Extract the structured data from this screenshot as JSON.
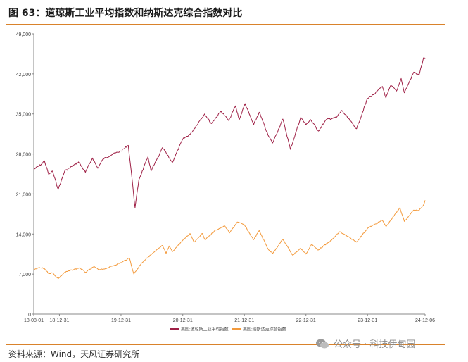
{
  "title": "图 63：道琼斯工业平均指数和纳斯达克综合指数对比",
  "source": "资料来源：Wind，天风证券研究所",
  "watermark": "公众号 · 科技伊甸园",
  "colors": {
    "dow": "#9e1f45",
    "nasdaq": "#f39a3c",
    "accent": "#d9822b"
  },
  "chart_data": {
    "type": "line",
    "title": "",
    "xlabel": "",
    "ylabel": "",
    "ylim": [
      0,
      49000
    ],
    "yticks": [
      0,
      7000,
      14000,
      21000,
      28000,
      35000,
      42000,
      49000
    ],
    "ytick_labels": [
      "0",
      "7,000",
      "14,000",
      "21,000",
      "28,000",
      "35,000",
      "42,000",
      "49,000"
    ],
    "xticks": [
      "18-08-01",
      "18-12-31",
      "19-12-31",
      "20-12-31",
      "21-12-31",
      "22-12-31",
      "23-12-31",
      "24-12-06"
    ],
    "xtick_dates": [
      "2018-08-01",
      "2018-12-31",
      "2019-12-31",
      "2020-12-31",
      "2021-12-31",
      "2022-12-31",
      "2023-12-31",
      "2024-12-06"
    ],
    "legend_position": "bottom",
    "grid": false,
    "series": [
      {
        "name": "美国:道琼斯工业平均指数",
        "color": "#9e1f45",
        "points": [
          [
            "2018-08-01",
            25300
          ],
          [
            "2018-09-15",
            26200
          ],
          [
            "2018-10-03",
            26800
          ],
          [
            "2018-10-29",
            24400
          ],
          [
            "2018-11-20",
            25000
          ],
          [
            "2018-12-24",
            21800
          ],
          [
            "2019-01-31",
            25000
          ],
          [
            "2019-03-15",
            25800
          ],
          [
            "2019-04-23",
            26600
          ],
          [
            "2019-06-03",
            24800
          ],
          [
            "2019-07-15",
            27300
          ],
          [
            "2019-08-15",
            25500
          ],
          [
            "2019-09-15",
            27100
          ],
          [
            "2019-11-15",
            28000
          ],
          [
            "2019-12-31",
            28500
          ],
          [
            "2020-02-12",
            29500
          ],
          [
            "2020-02-28",
            25400
          ],
          [
            "2020-03-23",
            18600
          ],
          [
            "2020-04-15",
            23500
          ],
          [
            "2020-06-08",
            27500
          ],
          [
            "2020-06-26",
            25000
          ],
          [
            "2020-08-15",
            27900
          ],
          [
            "2020-09-02",
            29100
          ],
          [
            "2020-10-30",
            26500
          ],
          [
            "2020-12-31",
            30600
          ],
          [
            "2021-02-15",
            31500
          ],
          [
            "2021-04-15",
            34000
          ],
          [
            "2021-05-10",
            35000
          ],
          [
            "2021-06-18",
            33300
          ],
          [
            "2021-08-15",
            35500
          ],
          [
            "2021-09-30",
            33800
          ],
          [
            "2021-11-08",
            36400
          ],
          [
            "2021-12-01",
            34000
          ],
          [
            "2022-01-04",
            36800
          ],
          [
            "2022-02-24",
            33100
          ],
          [
            "2022-03-29",
            35300
          ],
          [
            "2022-05-20",
            31300
          ],
          [
            "2022-06-16",
            29900
          ],
          [
            "2022-08-16",
            34100
          ],
          [
            "2022-09-30",
            28800
          ],
          [
            "2022-11-30",
            34400
          ],
          [
            "2022-12-31",
            33100
          ],
          [
            "2023-01-27",
            34000
          ],
          [
            "2023-03-15",
            32000
          ],
          [
            "2023-04-30",
            34000
          ],
          [
            "2023-06-30",
            34400
          ],
          [
            "2023-07-31",
            35600
          ],
          [
            "2023-10-27",
            32400
          ],
          [
            "2023-12-31",
            37700
          ],
          [
            "2024-02-15",
            38600
          ],
          [
            "2024-03-28",
            39800
          ],
          [
            "2024-04-18",
            37800
          ],
          [
            "2024-05-17",
            40000
          ],
          [
            "2024-06-20",
            39000
          ],
          [
            "2024-07-17",
            41200
          ],
          [
            "2024-08-05",
            38700
          ],
          [
            "2024-09-30",
            42300
          ],
          [
            "2024-10-31",
            41800
          ],
          [
            "2024-11-29",
            44900
          ],
          [
            "2024-12-06",
            44600
          ]
        ]
      },
      {
        "name": "美国:纳斯达克综合指数",
        "color": "#f39a3c",
        "points": [
          [
            "2018-08-01",
            7700
          ],
          [
            "2018-08-29",
            8100
          ],
          [
            "2018-10-01",
            8000
          ],
          [
            "2018-10-29",
            7100
          ],
          [
            "2018-11-20",
            7200
          ],
          [
            "2018-12-24",
            6200
          ],
          [
            "2019-01-31",
            7300
          ],
          [
            "2019-03-15",
            7700
          ],
          [
            "2019-04-30",
            8100
          ],
          [
            "2019-06-03",
            7300
          ],
          [
            "2019-07-26",
            8300
          ],
          [
            "2019-08-23",
            7700
          ],
          [
            "2019-10-15",
            8100
          ],
          [
            "2019-12-31",
            9000
          ],
          [
            "2020-02-19",
            9800
          ],
          [
            "2020-03-16",
            7000
          ],
          [
            "2020-04-30",
            8900
          ],
          [
            "2020-06-10",
            10000
          ],
          [
            "2020-09-02",
            12000
          ],
          [
            "2020-09-23",
            10600
          ],
          [
            "2020-10-12",
            11900
          ],
          [
            "2020-10-30",
            10900
          ],
          [
            "2020-12-31",
            12900
          ],
          [
            "2021-02-12",
            14100
          ],
          [
            "2021-03-08",
            12600
          ],
          [
            "2021-04-26",
            14100
          ],
          [
            "2021-05-12",
            13000
          ],
          [
            "2021-07-15",
            14700
          ],
          [
            "2021-09-07",
            15400
          ],
          [
            "2021-10-04",
            14200
          ],
          [
            "2021-11-19",
            16100
          ],
          [
            "2021-12-31",
            15600
          ],
          [
            "2022-02-23",
            13000
          ],
          [
            "2022-03-29",
            14600
          ],
          [
            "2022-05-20",
            11400
          ],
          [
            "2022-06-16",
            10600
          ],
          [
            "2022-08-16",
            13100
          ],
          [
            "2022-10-13",
            10300
          ],
          [
            "2022-11-30",
            11500
          ],
          [
            "2022-12-31",
            10500
          ],
          [
            "2023-02-02",
            12200
          ],
          [
            "2023-03-13",
            11200
          ],
          [
            "2023-05-31",
            12900
          ],
          [
            "2023-07-19",
            14400
          ],
          [
            "2023-10-27",
            12600
          ],
          [
            "2023-12-31",
            15000
          ],
          [
            "2024-03-28",
            16400
          ],
          [
            "2024-04-19",
            15300
          ],
          [
            "2024-07-10",
            18600
          ],
          [
            "2024-08-05",
            16200
          ],
          [
            "2024-09-30",
            18200
          ],
          [
            "2024-10-31",
            18100
          ],
          [
            "2024-11-29",
            19200
          ],
          [
            "2024-12-06",
            19900
          ]
        ]
      }
    ]
  }
}
